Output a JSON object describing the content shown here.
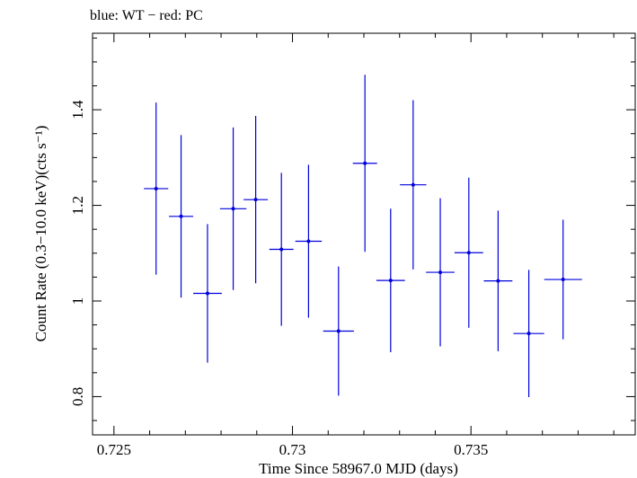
{
  "chart_data": {
    "type": "scatter",
    "title": "blue: WT − red: PC",
    "xlabel": "Time Since 58967.0 MJD (days)",
    "ylabel": "Count Rate (0.3−10.0 keV)(cts s⁻¹)",
    "xlim": [
      0.7244,
      0.7396
    ],
    "ylim": [
      0.72,
      1.56
    ],
    "x_ticks": [
      0.725,
      0.73,
      0.735
    ],
    "x_tick_labels": [
      "0.725",
      "0.73",
      "0.735"
    ],
    "y_ticks": [
      0.8,
      1.0,
      1.2,
      1.4
    ],
    "y_tick_labels": [
      "0.8",
      "1",
      "1.2",
      "1.4"
    ],
    "grid": false,
    "series": [
      {
        "name": "WT",
        "color": "#0000dd",
        "points": [
          {
            "x": 0.72618,
            "xerr": 0.00034,
            "y": 1.235,
            "yerr_low": 0.18,
            "yerr_high": 0.18
          },
          {
            "x": 0.72688,
            "xerr": 0.00034,
            "y": 1.177,
            "yerr_low": 0.17,
            "yerr_high": 0.17
          },
          {
            "x": 0.72762,
            "xerr": 0.0004,
            "y": 1.016,
            "yerr_low": 0.145,
            "yerr_high": 0.145
          },
          {
            "x": 0.72834,
            "xerr": 0.00037,
            "y": 1.193,
            "yerr_low": 0.17,
            "yerr_high": 0.17
          },
          {
            "x": 0.72897,
            "xerr": 0.00034,
            "y": 1.212,
            "yerr_low": 0.175,
            "yerr_high": 0.175
          },
          {
            "x": 0.72969,
            "xerr": 0.00034,
            "y": 1.108,
            "yerr_low": 0.16,
            "yerr_high": 0.16
          },
          {
            "x": 0.73045,
            "xerr": 0.00037,
            "y": 1.125,
            "yerr_low": 0.16,
            "yerr_high": 0.16
          },
          {
            "x": 0.73129,
            "xerr": 0.00043,
            "y": 0.937,
            "yerr_low": 0.135,
            "yerr_high": 0.135
          },
          {
            "x": 0.73203,
            "xerr": 0.00034,
            "y": 1.288,
            "yerr_low": 0.185,
            "yerr_high": 0.185
          },
          {
            "x": 0.73275,
            "xerr": 0.0004,
            "y": 1.043,
            "yerr_low": 0.15,
            "yerr_high": 0.15
          },
          {
            "x": 0.73338,
            "xerr": 0.00037,
            "y": 1.243,
            "yerr_low": 0.177,
            "yerr_high": 0.177
          },
          {
            "x": 0.73414,
            "xerr": 0.0004,
            "y": 1.06,
            "yerr_low": 0.155,
            "yerr_high": 0.155
          },
          {
            "x": 0.73494,
            "xerr": 0.0004,
            "y": 1.101,
            "yerr_low": 0.157,
            "yerr_high": 0.157
          },
          {
            "x": 0.73576,
            "xerr": 0.0004,
            "y": 1.042,
            "yerr_low": 0.147,
            "yerr_high": 0.147
          },
          {
            "x": 0.73662,
            "xerr": 0.00043,
            "y": 0.932,
            "yerr_low": 0.133,
            "yerr_high": 0.133
          },
          {
            "x": 0.73758,
            "xerr": 0.00053,
            "y": 1.045,
            "yerr_low": 0.125,
            "yerr_high": 0.125
          }
        ]
      }
    ]
  }
}
